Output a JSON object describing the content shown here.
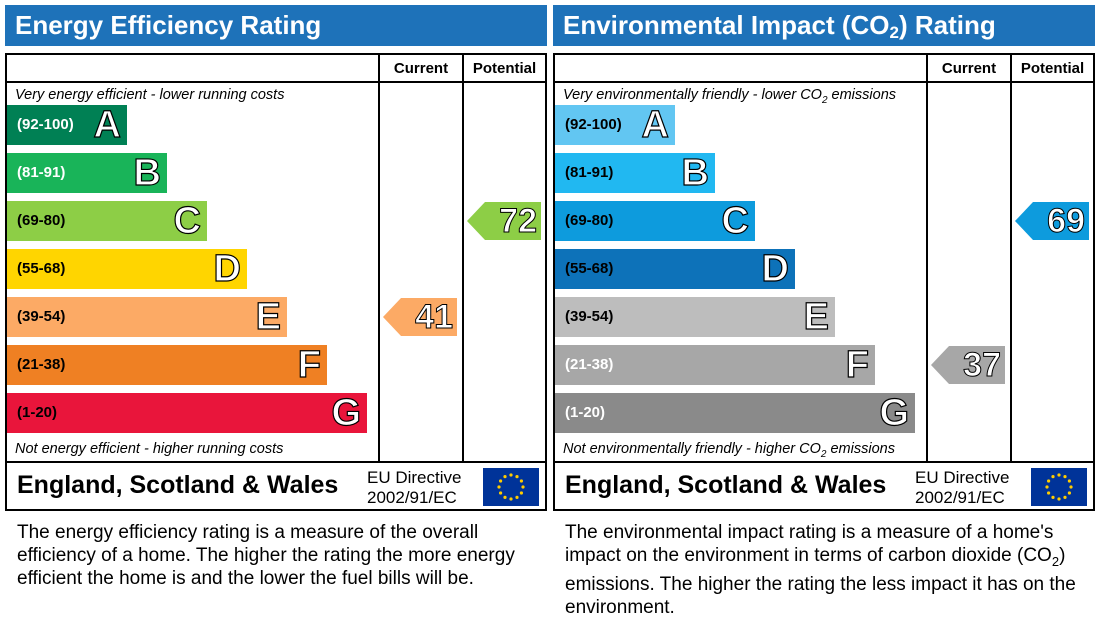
{
  "colors": {
    "title_bar": "#1e72b9",
    "ee_bands": [
      "#008054",
      "#19b459",
      "#8dce46",
      "#ffd500",
      "#fcaa65",
      "#ef8023",
      "#e9153b"
    ],
    "ei_bands": [
      "#62c6f2",
      "#21b8f1",
      "#0d9bdd",
      "#0d72b9",
      "#bdbdbd",
      "#a7a7a7",
      "#8a8a8a"
    ]
  },
  "chart_data": [
    {
      "type": "bar",
      "title": "Energy Efficiency Rating",
      "columns": [
        "Current",
        "Potential"
      ],
      "top_caption": "Very energy efficient - lower running costs",
      "bottom_caption": "Not energy efficient - higher running costs",
      "bands": [
        {
          "letter": "A",
          "range": "(92-100)"
        },
        {
          "letter": "B",
          "range": "(81-91)"
        },
        {
          "letter": "C",
          "range": "(69-80)"
        },
        {
          "letter": "D",
          "range": "(55-68)"
        },
        {
          "letter": "E",
          "range": "(39-54)"
        },
        {
          "letter": "F",
          "range": "(21-38)"
        },
        {
          "letter": "G",
          "range": "(1-20)"
        }
      ],
      "current": {
        "value": 41,
        "band": "E"
      },
      "potential": {
        "value": 72,
        "band": "C"
      },
      "region": "England, Scotland & Wales",
      "directive": [
        "EU Directive",
        "2002/91/EC"
      ],
      "description": "The energy efficiency rating is a measure of the overall efficiency of a home. The higher the rating the more energy efficient the home is and the lower the fuel bills will be."
    },
    {
      "type": "bar",
      "title_pre": "Environmental Impact (CO",
      "title_sub": "2",
      "title_post": ") Rating",
      "columns": [
        "Current",
        "Potential"
      ],
      "top_caption_pre": "Very environmentally friendly - lower CO",
      "top_caption_sub": "2",
      "top_caption_post": " emissions",
      "bottom_caption_pre": "Not environmentally friendly - higher CO",
      "bottom_caption_sub": "2",
      "bottom_caption_post": " emissions",
      "bands": [
        {
          "letter": "A",
          "range": "(92-100)"
        },
        {
          "letter": "B",
          "range": "(81-91)"
        },
        {
          "letter": "C",
          "range": "(69-80)"
        },
        {
          "letter": "D",
          "range": "(55-68)"
        },
        {
          "letter": "E",
          "range": "(39-54)"
        },
        {
          "letter": "F",
          "range": "(21-38)"
        },
        {
          "letter": "G",
          "range": "(1-20)"
        }
      ],
      "current": {
        "value": 37,
        "band": "F"
      },
      "potential": {
        "value": 69,
        "band": "C"
      },
      "region": "England, Scotland & Wales",
      "directive": [
        "EU Directive",
        "2002/91/EC"
      ],
      "description_pre": "The environmental impact rating is a measure of a home's impact on the environment in terms of carbon dioxide (CO",
      "description_sub": "2",
      "description_post": ") emissions. The higher the rating the less impact it has on the environment."
    }
  ]
}
